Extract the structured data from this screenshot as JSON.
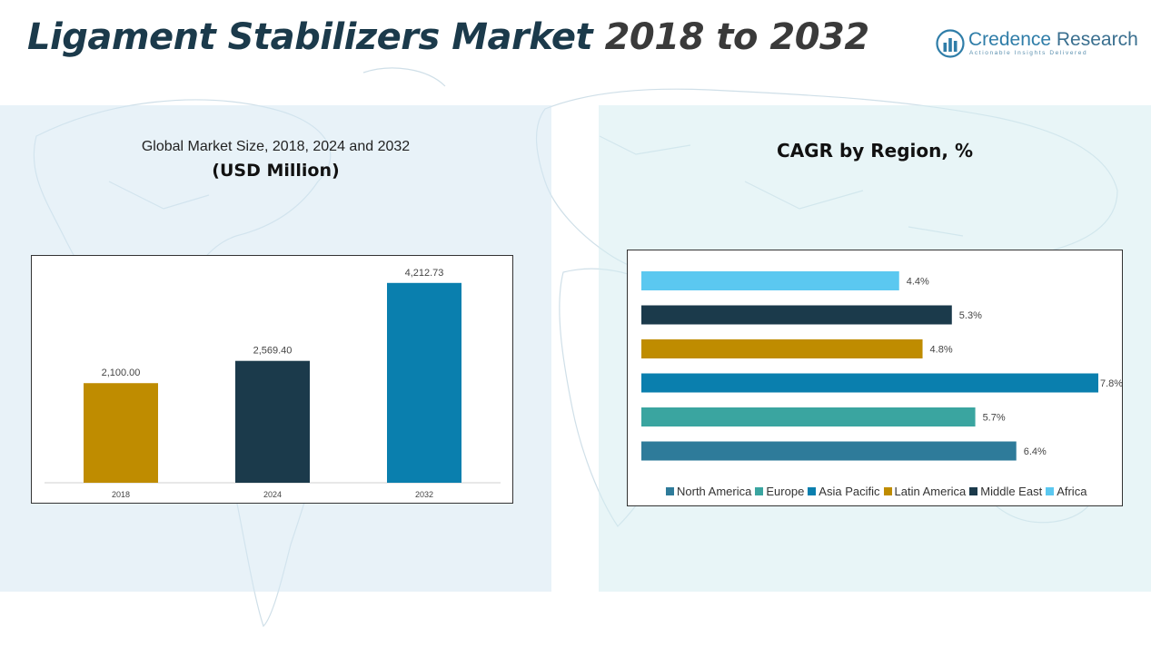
{
  "header": {
    "title_part1": "Ligament Stabilizers Market ",
    "title_part2": "2018 to 2032"
  },
  "logo": {
    "name_part1": "Credence ",
    "name_part2": "Research",
    "tagline": "Actionable Insights Delivered"
  },
  "left_panel": {
    "subtitle": "Global Market Size, 2018, 2024 and 2032",
    "unit": "(USD Million)"
  },
  "right_panel": {
    "title": "CAGR by Region, %"
  },
  "chart_data": [
    {
      "type": "bar",
      "title": "Global Market Size, 2018, 2024 and 2032",
      "ylabel": "(USD Million)",
      "categories": [
        "2018",
        "2024",
        "2032"
      ],
      "values": [
        2100.0,
        2569.4,
        4212.73
      ],
      "value_labels": [
        "2,100.00",
        "2,569.40",
        "4,212.73"
      ],
      "colors": [
        "#bf8c00",
        "#1b3a4b",
        "#0a7fae"
      ],
      "ylim": [
        0,
        4400
      ],
      "grid": false
    },
    {
      "type": "bar",
      "orientation": "horizontal",
      "title": "CAGR by Region, %",
      "categories": [
        "Africa",
        "Middle East",
        "Latin America",
        "Asia Pacific",
        "Europe",
        "North America"
      ],
      "values": [
        4.4,
        5.3,
        4.8,
        7.8,
        5.7,
        6.4
      ],
      "value_labels": [
        "4.4%",
        "5.3%",
        "4.8%",
        "7.8%",
        "5.7%",
        "6.4%"
      ],
      "colors": [
        "#5bc8f0",
        "#1b3a4b",
        "#bf8c00",
        "#0a7fae",
        "#3aa5a0",
        "#2e7b9a"
      ],
      "xlim": [
        0,
        7.8
      ],
      "legend": {
        "placement": "bottom",
        "items": [
          {
            "label": "North America",
            "color": "#2e7b9a"
          },
          {
            "label": "Europe",
            "color": "#3aa5a0"
          },
          {
            "label": "Asia Pacific",
            "color": "#0a7fae"
          },
          {
            "label": "Latin America",
            "color": "#bf8c00"
          },
          {
            "label": "Middle East",
            "color": "#1b3a4b"
          },
          {
            "label": "Africa",
            "color": "#5bc8f0"
          }
        ]
      }
    }
  ]
}
